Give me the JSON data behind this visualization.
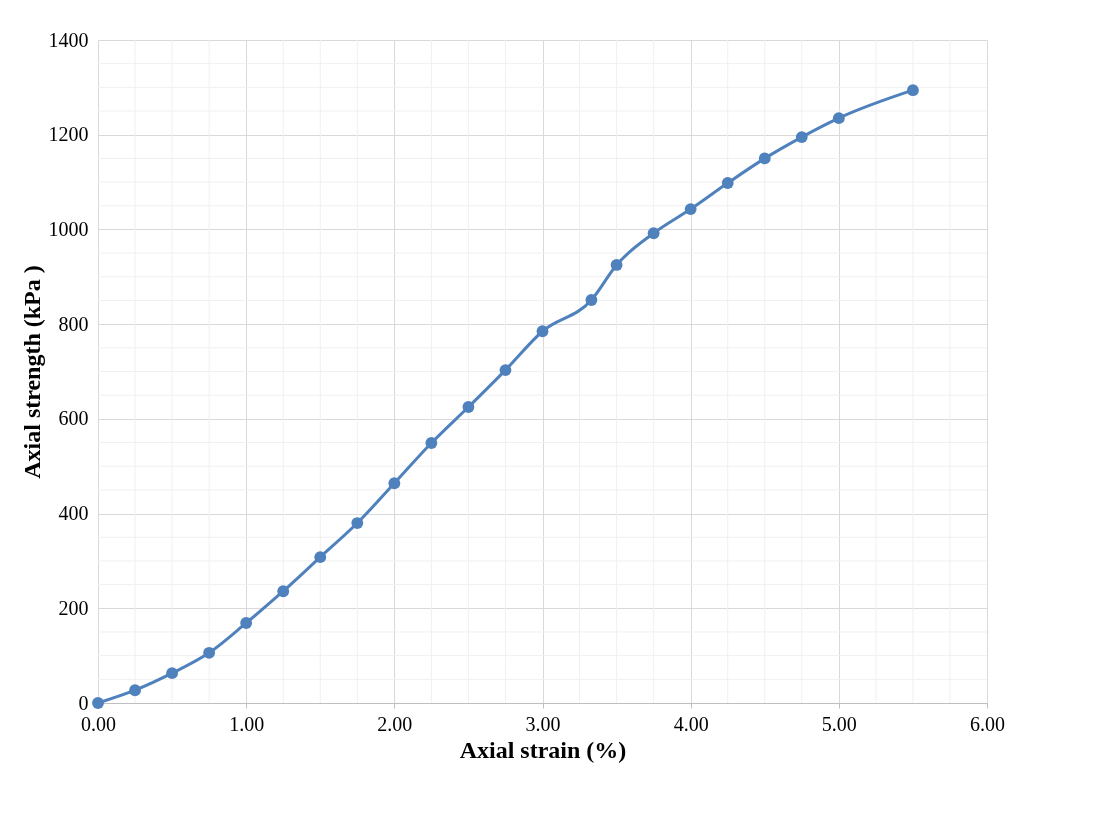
{
  "chart_data": {
    "type": "line",
    "xlabel": "Axial strain (%)",
    "ylabel": "Axial strength (kPa )",
    "x": [
      0,
      0.25,
      0.5,
      0.75,
      1.0,
      1.25,
      1.5,
      1.75,
      2.0,
      2.25,
      2.5,
      2.75,
      3.0,
      3.33,
      3.5,
      3.75,
      4.0,
      4.25,
      4.5,
      4.75,
      5.0,
      5.5
    ],
    "series": [
      {
        "color": "#4f81bd",
        "values": [
          0,
          27,
          63,
          106,
          169,
          236,
          308,
          380,
          464,
          549,
          625,
          703,
          785,
          851,
          925,
          992,
          1043,
          1098,
          1150,
          1195,
          1235,
          1294
        ]
      }
    ],
    "xlim": [
      0,
      6
    ],
    "xticks": [
      {
        "value": 0,
        "label": "0.00"
      },
      {
        "value": 1,
        "label": "1.00"
      },
      {
        "value": 2,
        "label": "2.00"
      },
      {
        "value": 3,
        "label": "3.00"
      },
      {
        "value": 4,
        "label": "4.00"
      },
      {
        "value": 5,
        "label": "5.00"
      },
      {
        "value": 6,
        "label": "6.00"
      }
    ],
    "ylim": [
      0,
      1400
    ],
    "yticks": [
      0,
      200,
      400,
      600,
      800,
      1000,
      1200,
      1400
    ],
    "grid": true,
    "marker": "circle",
    "line_style": "solid"
  }
}
